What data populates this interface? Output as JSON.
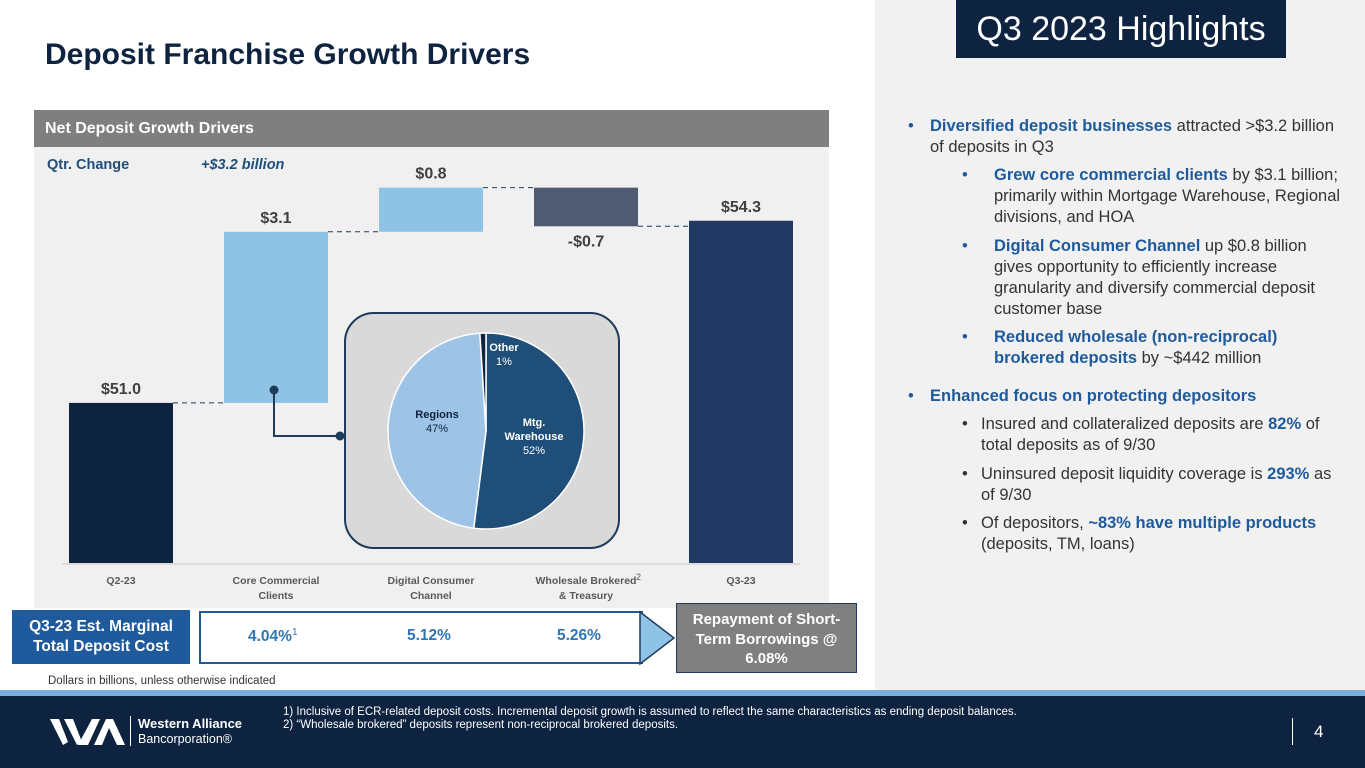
{
  "title": "Deposit Franchise Growth Drivers",
  "highlights_badge": "Q3 2023 Highlights",
  "chart_panel": {
    "header": "Net Deposit Growth Drivers",
    "qtr_change_label": "Qtr. Change",
    "qtr_change_value": "+$3.2 billion"
  },
  "colors": {
    "navy": "#0d2340",
    "dark_blue": "#1f3864",
    "light_blue": "#8fc3e6",
    "slate": "#4f5b73",
    "accent_blue": "#1f5b9c",
    "pie_dark": "#1f4e79",
    "pie_light": "#9dc3e6"
  },
  "chart_data": [
    {
      "type": "waterfall",
      "title": "Net Deposit Growth Drivers",
      "categories": [
        "Q2-23",
        "Core Commercial Clients",
        "Digital Consumer Channel",
        "Wholesale Brokered & Treasury",
        "Q3-23"
      ],
      "category_labels": [
        [
          "Q2-23"
        ],
        [
          "Core Commercial",
          "Clients"
        ],
        [
          "Digital Consumer",
          "Channel"
        ],
        [
          "Wholesale Brokered",
          "& Treasury"
        ],
        [
          "Q3-23"
        ]
      ],
      "category_superscripts": [
        "",
        "",
        "",
        "2",
        ""
      ],
      "values": [
        51.0,
        3.1,
        0.8,
        -0.7,
        54.3
      ],
      "kinds": [
        "total",
        "delta",
        "delta",
        "delta",
        "total"
      ],
      "labels": [
        "$51.0",
        "$3.1",
        "$0.8",
        "-$0.7",
        "$54.3"
      ],
      "units": "$ billions"
    },
    {
      "type": "pie",
      "title": "Core Commercial Clients mix",
      "slices": [
        {
          "name": "Mtg. Warehouse",
          "label_lines": [
            "Mtg.",
            "Warehouse",
            "52%"
          ],
          "value": 52
        },
        {
          "name": "Regions",
          "label_lines": [
            "Regions",
            "47%"
          ],
          "value": 47
        },
        {
          "name": "Other",
          "label_lines": [
            "Other",
            "1%"
          ],
          "value": 1
        }
      ]
    }
  ],
  "cost_row": {
    "label": "Q3-23 Est. Marginal Total Deposit Cost",
    "values": [
      "4.04%",
      "5.12%",
      "5.26%"
    ],
    "first_superscript": "1",
    "repayment": "Repayment of Short-Term Borrowings @ 6.08%"
  },
  "dollars_note": "Dollars in billions, unless otherwise indicated",
  "bullets": {
    "b1_hl": "Diversified deposit businesses",
    "b1_rest": " attracted >$3.2 billion of deposits in Q3",
    "b1a_hl": "Grew core commercial clients",
    "b1a_rest": " by $3.1 billion; primarily within Mortgage Warehouse, Regional divisions, and HOA",
    "b1b_hl": "Digital Consumer Channel",
    "b1b_rest": " up $0.8 billion gives opportunity to efficiently increase granularity and diversify commercial deposit customer base",
    "b1c_hl": "Reduced wholesale (non-reciprocal) brokered deposits",
    "b1c_rest": " by ~$442 million",
    "b2_hl": "Enhanced focus on protecting depositors",
    "b2a_pre": "Insured and collateralized deposits are ",
    "b2a_hl": "82%",
    "b2a_post": " of total deposits as of 9/30",
    "b2b_pre": "Uninsured deposit liquidity coverage is ",
    "b2b_hl": "293%",
    "b2b_post": " as of 9/30",
    "b2c_pre": "Of depositors, ",
    "b2c_hl": "~83% have multiple products",
    "b2c_post": " (deposits, TM, loans)"
  },
  "footer": {
    "note1": "1)   Inclusive of ECR-related deposit costs. Incremental deposit growth is assumed to reflect the same characteristics as ending deposit balances.",
    "note2": "2) “Wholesale brokered” deposits represent non-reciprocal brokered deposits.",
    "logo_line1": "Western Alliance",
    "logo_line2": "Bancorporation®",
    "page_number": "4"
  }
}
